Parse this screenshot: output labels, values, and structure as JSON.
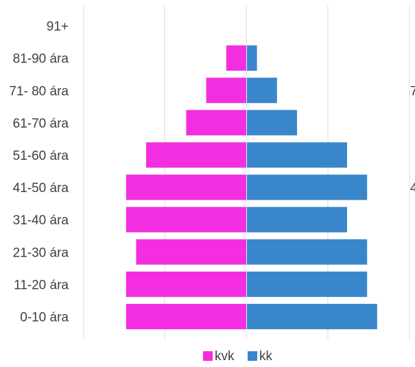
{
  "chart_data": {
    "type": "bar",
    "orientation": "horizontal-diverging",
    "categories": [
      "91+",
      "81-90 ára",
      "71- 80 ára",
      "61-70 ára",
      "51-60 ára",
      "41-50 ára",
      "31-40 ára",
      "21-30 ára",
      "11-20 ára",
      "0-10 ára"
    ],
    "series": [
      {
        "name": "kvk",
        "color": "#F22EE0",
        "values": [
          0,
          2,
          4,
          6,
          10,
          12,
          12,
          11,
          12,
          12
        ]
      },
      {
        "name": "kk",
        "color": "#3A86CB",
        "values": [
          0,
          1,
          3,
          5,
          10,
          12,
          10,
          12,
          12,
          13
        ]
      }
    ],
    "x_unit_note": "relative counts, axis tick labels not shown",
    "grid": true,
    "legend_position": "bottom",
    "right_clipped_labels": [
      "7",
      "4"
    ]
  }
}
